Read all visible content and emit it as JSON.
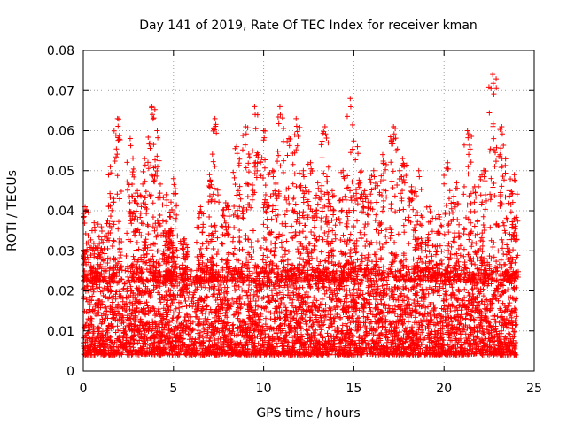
{
  "chart_data": {
    "type": "scatter",
    "title": "Day 141 of 2019, Rate Of TEC Index for receiver kman",
    "xlabel": "GPS time / hours",
    "ylabel": "ROTI / TECUs",
    "xlim": [
      0,
      25
    ],
    "ylim": [
      0,
      0.08
    ],
    "grid": true,
    "marker": "+",
    "color": "#ff0000",
    "x_ticks": [
      0,
      5,
      10,
      15,
      20,
      25
    ],
    "x_tick_labels": [
      "0",
      "5",
      "10",
      "15",
      "20",
      "25"
    ],
    "y_ticks": [
      0,
      0.01,
      0.02,
      0.03,
      0.04,
      0.05,
      0.06,
      0.07,
      0.08
    ],
    "y_tick_labels": [
      "0",
      "0.01",
      "0.02",
      "0.03",
      "0.04",
      "0.05",
      "0.06",
      "0.07",
      "0.08"
    ],
    "series": [
      {
        "name": "ROTI",
        "x_range": [
          0,
          24
        ],
        "base_range": [
          0.004,
          0.025
        ],
        "sample_interval_hours": 0.0083,
        "peaks": [
          {
            "x": 0.1,
            "y": 0.041
          },
          {
            "x": 0.6,
            "y": 0.037
          },
          {
            "x": 1.0,
            "y": 0.036
          },
          {
            "x": 1.5,
            "y": 0.051
          },
          {
            "x": 1.9,
            "y": 0.063
          },
          {
            "x": 2.6,
            "y": 0.058
          },
          {
            "x": 3.0,
            "y": 0.045
          },
          {
            "x": 3.4,
            "y": 0.053
          },
          {
            "x": 3.8,
            "y": 0.066
          },
          {
            "x": 4.1,
            "y": 0.06
          },
          {
            "x": 4.6,
            "y": 0.044
          },
          {
            "x": 4.8,
            "y": 0.035
          },
          {
            "x": 5.0,
            "y": 0.048
          },
          {
            "x": 5.6,
            "y": 0.033
          },
          {
            "x": 6.5,
            "y": 0.041
          },
          {
            "x": 7.0,
            "y": 0.049
          },
          {
            "x": 7.3,
            "y": 0.063
          },
          {
            "x": 7.9,
            "y": 0.042
          },
          {
            "x": 8.5,
            "y": 0.056
          },
          {
            "x": 9.0,
            "y": 0.061
          },
          {
            "x": 9.5,
            "y": 0.066
          },
          {
            "x": 10.0,
            "y": 0.06
          },
          {
            "x": 10.5,
            "y": 0.05
          },
          {
            "x": 10.9,
            "y": 0.066
          },
          {
            "x": 11.4,
            "y": 0.058
          },
          {
            "x": 11.8,
            "y": 0.063
          },
          {
            "x": 12.2,
            "y": 0.05
          },
          {
            "x": 12.6,
            "y": 0.052
          },
          {
            "x": 13.0,
            "y": 0.047
          },
          {
            "x": 13.4,
            "y": 0.061
          },
          {
            "x": 13.8,
            "y": 0.045
          },
          {
            "x": 14.4,
            "y": 0.05
          },
          {
            "x": 14.8,
            "y": 0.068
          },
          {
            "x": 15.2,
            "y": 0.056
          },
          {
            "x": 15.6,
            "y": 0.045
          },
          {
            "x": 16.1,
            "y": 0.05
          },
          {
            "x": 16.6,
            "y": 0.054
          },
          {
            "x": 17.2,
            "y": 0.061
          },
          {
            "x": 17.7,
            "y": 0.053
          },
          {
            "x": 18.2,
            "y": 0.046
          },
          {
            "x": 18.6,
            "y": 0.05
          },
          {
            "x": 19.2,
            "y": 0.041
          },
          {
            "x": 19.7,
            "y": 0.039
          },
          {
            "x": 20.2,
            "y": 0.052
          },
          {
            "x": 20.7,
            "y": 0.047
          },
          {
            "x": 21.3,
            "y": 0.06
          },
          {
            "x": 21.7,
            "y": 0.046
          },
          {
            "x": 22.2,
            "y": 0.05
          },
          {
            "x": 22.7,
            "y": 0.074
          },
          {
            "x": 23.2,
            "y": 0.061
          },
          {
            "x": 23.6,
            "y": 0.045
          },
          {
            "x": 23.9,
            "y": 0.049
          }
        ]
      }
    ]
  }
}
